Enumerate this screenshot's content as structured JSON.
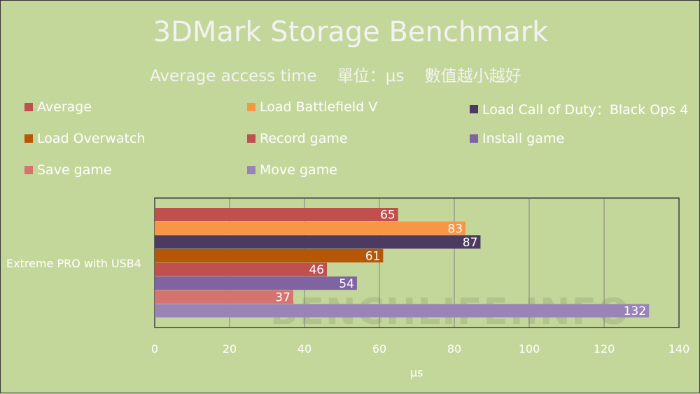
{
  "chart_data": {
    "type": "bar",
    "orientation": "horizontal",
    "title": "3DMark Storage Benchmark",
    "subtitle": "Average access time    單位：μs    數值越小越好",
    "categories": [
      "Extreme PRO with USB4"
    ],
    "series": [
      {
        "name": "Average",
        "values": [
          65
        ],
        "color": "#c0504d"
      },
      {
        "name": "Load Battlefield V",
        "values": [
          83
        ],
        "color": "#f79646"
      },
      {
        "name": "Load Call of Duty：Black Ops 4",
        "values": [
          87
        ],
        "color": "#4d3a60"
      },
      {
        "name": "Load Overwatch",
        "values": [
          61
        ],
        "color": "#b65708"
      },
      {
        "name": "Record game",
        "values": [
          46
        ],
        "color": "#c0504d"
      },
      {
        "name": "Install game",
        "values": [
          54
        ],
        "color": "#8064a2"
      },
      {
        "name": "Save game",
        "values": [
          37
        ],
        "color": "#d47370"
      },
      {
        "name": "Move game",
        "values": [
          132
        ],
        "color": "#9a84b7"
      }
    ],
    "xlabel": "μs",
    "xlim": [
      0,
      140
    ],
    "xticks": [
      0,
      20,
      40,
      60,
      80,
      100,
      120,
      140
    ],
    "grid": true,
    "legend_placement": "top",
    "background": "#c4d79b",
    "watermark": "BENCHLIFE.INFO"
  }
}
